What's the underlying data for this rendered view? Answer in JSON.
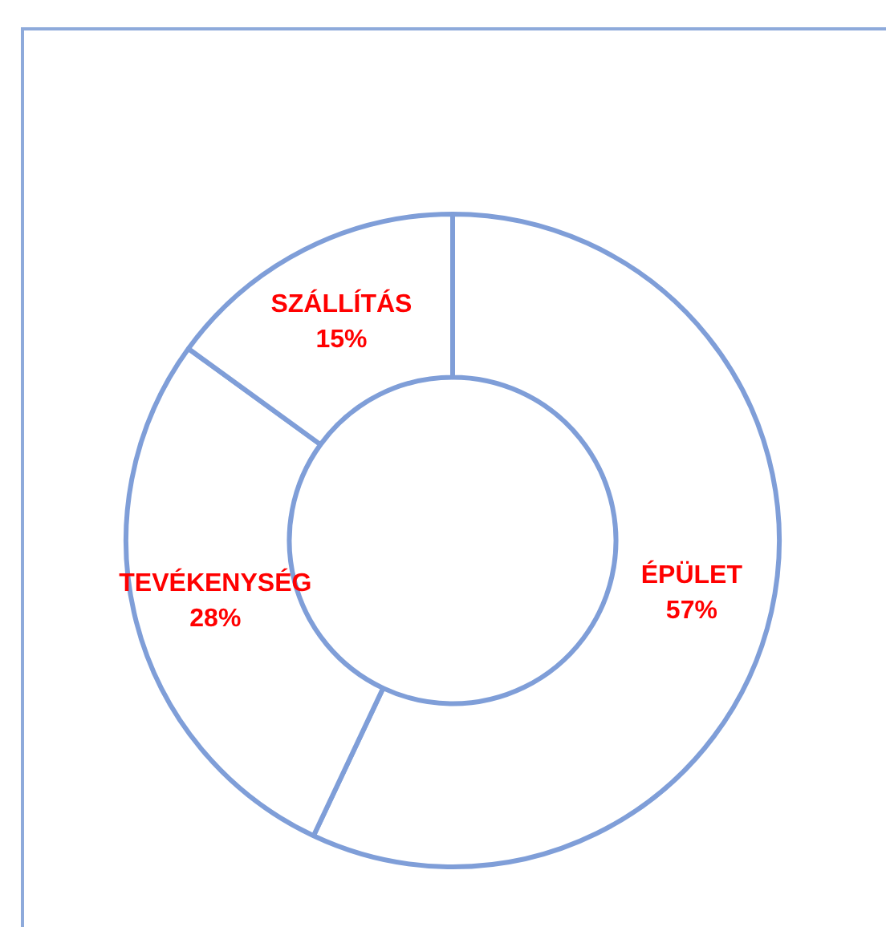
{
  "chart_data": {
    "type": "donut",
    "categories": [
      "ÉPÜLET",
      "TEVÉKENYSÉG",
      "SZÁLLÍTÁS"
    ],
    "values": [
      57,
      28,
      15
    ],
    "colors": [
      "#ffffff",
      "#ffffff",
      "#ffffff"
    ],
    "value_labels": [
      "57%",
      "28%",
      "15%"
    ],
    "legend": false
  }
}
